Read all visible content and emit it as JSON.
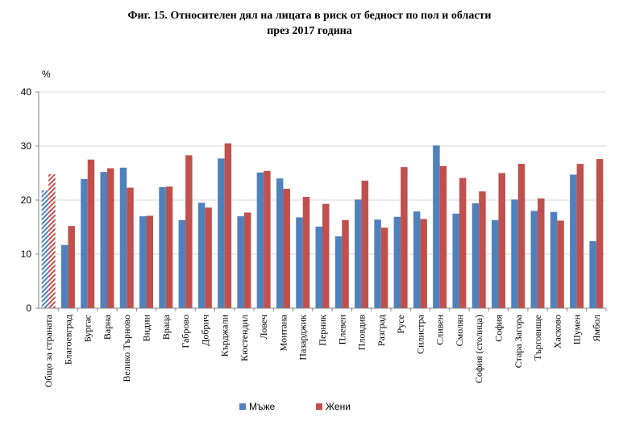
{
  "colors": {
    "men": "#4f81bd",
    "women": "#c0504d",
    "grid": "#d9d9d9",
    "axis": "#868686"
  },
  "chart_data": {
    "type": "bar",
    "title_line1": "Фиг. 15. Относителен дял на лицата в риск от бедност по пол и области",
    "title_line2": "през 2017 година",
    "ylabel": "%",
    "ylim": [
      0,
      40
    ],
    "yticks": [
      0,
      10,
      20,
      30,
      40
    ],
    "grid": true,
    "legend_position": "bottom",
    "first_category_hatched": true,
    "categories": [
      "Общо за страната",
      "Благоевград",
      "Бургас",
      "Варна",
      "Велико Търново",
      "Видин",
      "Враца",
      "Габрово",
      "Добрич",
      "Кърджали",
      "Кюстендил",
      "Ловеч",
      "Монтана",
      "Пазарджик",
      "Перник",
      "Плевен",
      "Пловдив",
      "Разград",
      "Русе",
      "Силистра",
      "Сливен",
      "Смолян",
      "София (столица)",
      "София",
      "Стара Загора",
      "Търговище",
      "Хасково",
      "Шумен",
      "Ямбол"
    ],
    "series": [
      {
        "name": "Мъже",
        "values": [
          21.8,
          11.7,
          23.9,
          25.2,
          26.0,
          17.0,
          22.4,
          16.3,
          19.5,
          27.7,
          17.0,
          25.1,
          24.0,
          16.8,
          15.1,
          13.3,
          20.1,
          16.4,
          16.9,
          17.9,
          30.1,
          17.5,
          19.4,
          16.3,
          20.1,
          18.0,
          17.8,
          24.7,
          12.4
        ]
      },
      {
        "name": "Жени",
        "values": [
          24.8,
          15.2,
          27.5,
          25.9,
          22.3,
          17.1,
          22.5,
          28.3,
          18.6,
          30.5,
          17.7,
          25.4,
          22.1,
          20.6,
          19.3,
          16.3,
          23.6,
          14.9,
          26.1,
          16.5,
          26.3,
          24.1,
          21.6,
          25.0,
          26.7,
          20.3,
          16.2,
          26.7,
          27.6
        ]
      }
    ]
  }
}
